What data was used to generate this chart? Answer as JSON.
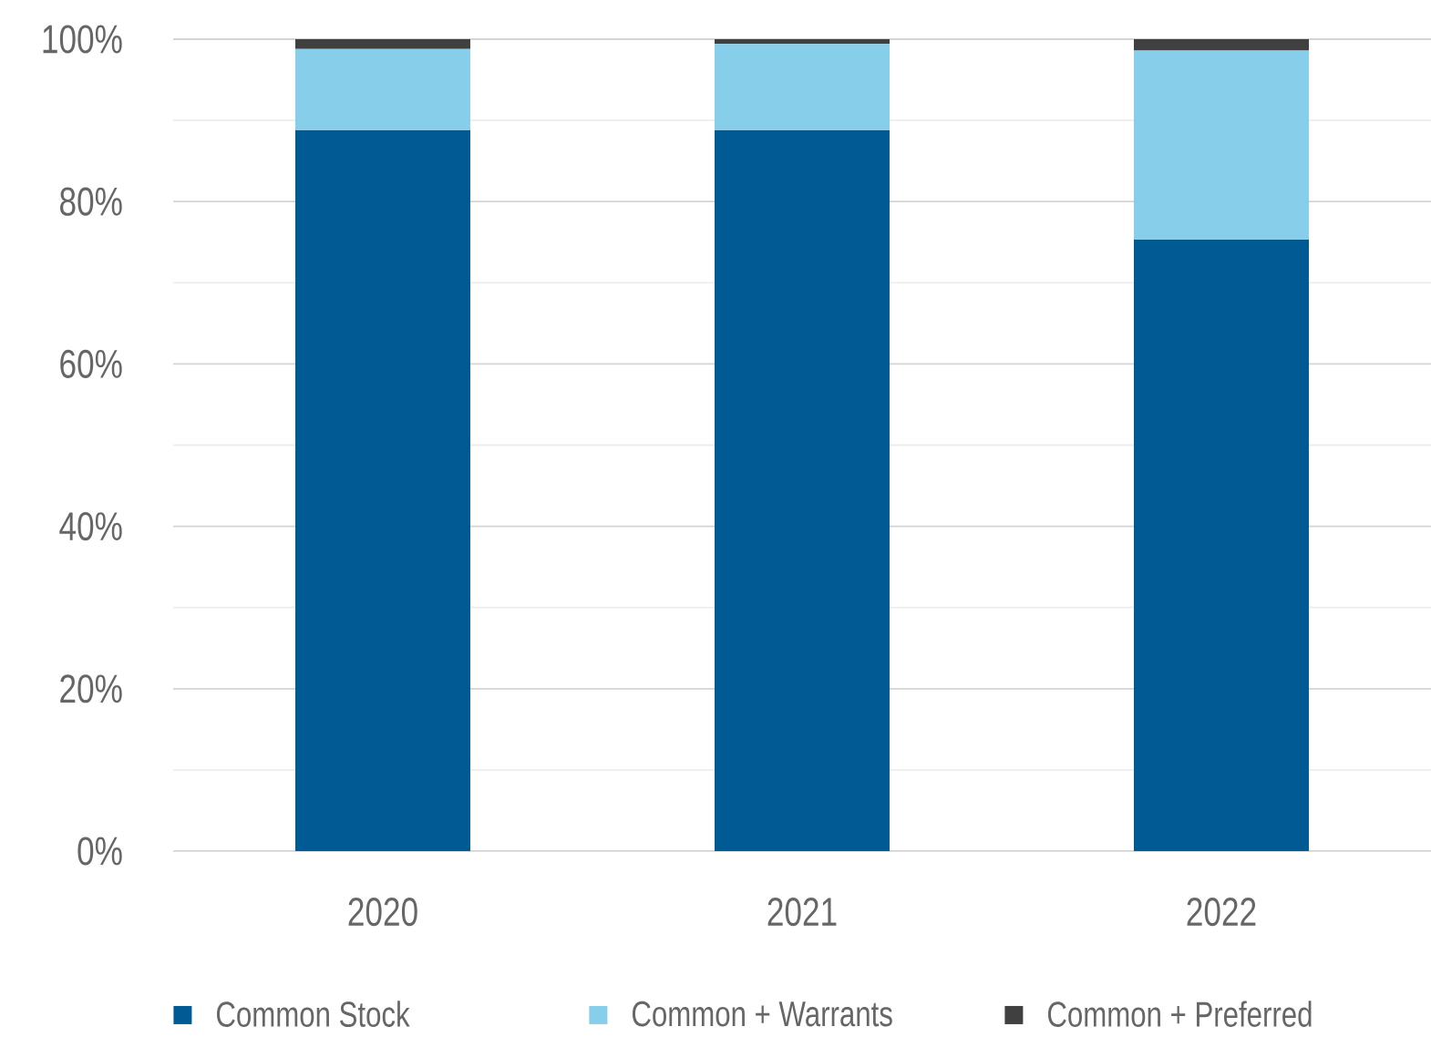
{
  "chart_data": {
    "type": "bar",
    "stacked": true,
    "categories": [
      "2020",
      "2021",
      "2022"
    ],
    "series": [
      {
        "name": "Common Stock",
        "color": "#005b94",
        "values": [
          88.8,
          88.8,
          75.3
        ]
      },
      {
        "name": "Common + Warrants",
        "color": "#87ceea",
        "values": [
          10.0,
          10.6,
          23.3
        ]
      },
      {
        "name": "Common + Preferred",
        "color": "#404040",
        "values": [
          1.2,
          0.6,
          1.4
        ]
      }
    ],
    "ylim": [
      0,
      100
    ],
    "yticks": [
      {
        "value": 0,
        "label": "0%"
      },
      {
        "value": 10,
        "label": null
      },
      {
        "value": 20,
        "label": "20%"
      },
      {
        "value": 30,
        "label": null
      },
      {
        "value": 40,
        "label": "40%"
      },
      {
        "value": 50,
        "label": null
      },
      {
        "value": 60,
        "label": "60%"
      },
      {
        "value": 70,
        "label": null
      },
      {
        "value": 80,
        "label": "80%"
      },
      {
        "value": 90,
        "label": null
      },
      {
        "value": 100,
        "label": "100%"
      }
    ],
    "grid": "y",
    "legend": "bottom"
  }
}
